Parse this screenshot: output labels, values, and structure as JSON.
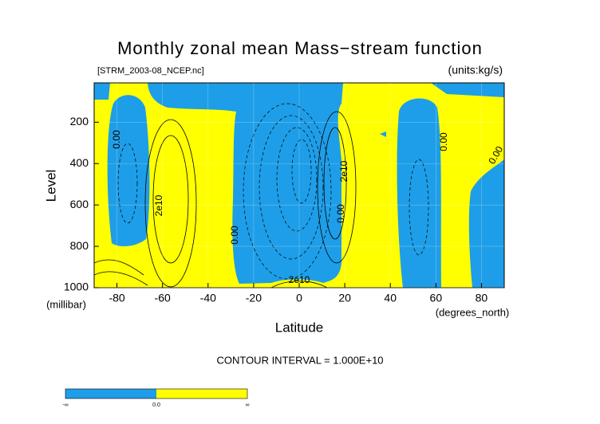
{
  "chart_data": {
    "type": "contour",
    "title": "Monthly zonal mean Mass−stream function",
    "subtitle_left": "[STRM_2003-08_NCEP.nc]",
    "subtitle_right": "(units:kg/s)",
    "x_label": "Latitude",
    "x_unit": "(degrees_north)",
    "y_label": "Level",
    "y_unit": "(millibar)",
    "xlim": [
      -90,
      90
    ],
    "xticks": [
      -80,
      -60,
      -40,
      -20,
      0,
      20,
      40,
      60,
      80
    ],
    "ylim": [
      1000,
      10
    ],
    "yticks": [
      200,
      400,
      600,
      800,
      1000
    ],
    "grid": true,
    "annotations": [
      "0.00",
      "2e10",
      "0.00",
      "2e10",
      "0.00",
      "0.00",
      "0.00",
      "2e10"
    ],
    "footer": "CONTOUR INTERVAL = 1.000E+10",
    "colorbar": {
      "colors": [
        "#1e9ee8",
        "#ffff00"
      ],
      "labels": [
        "-∞",
        "0.0",
        "∞"
      ]
    }
  }
}
